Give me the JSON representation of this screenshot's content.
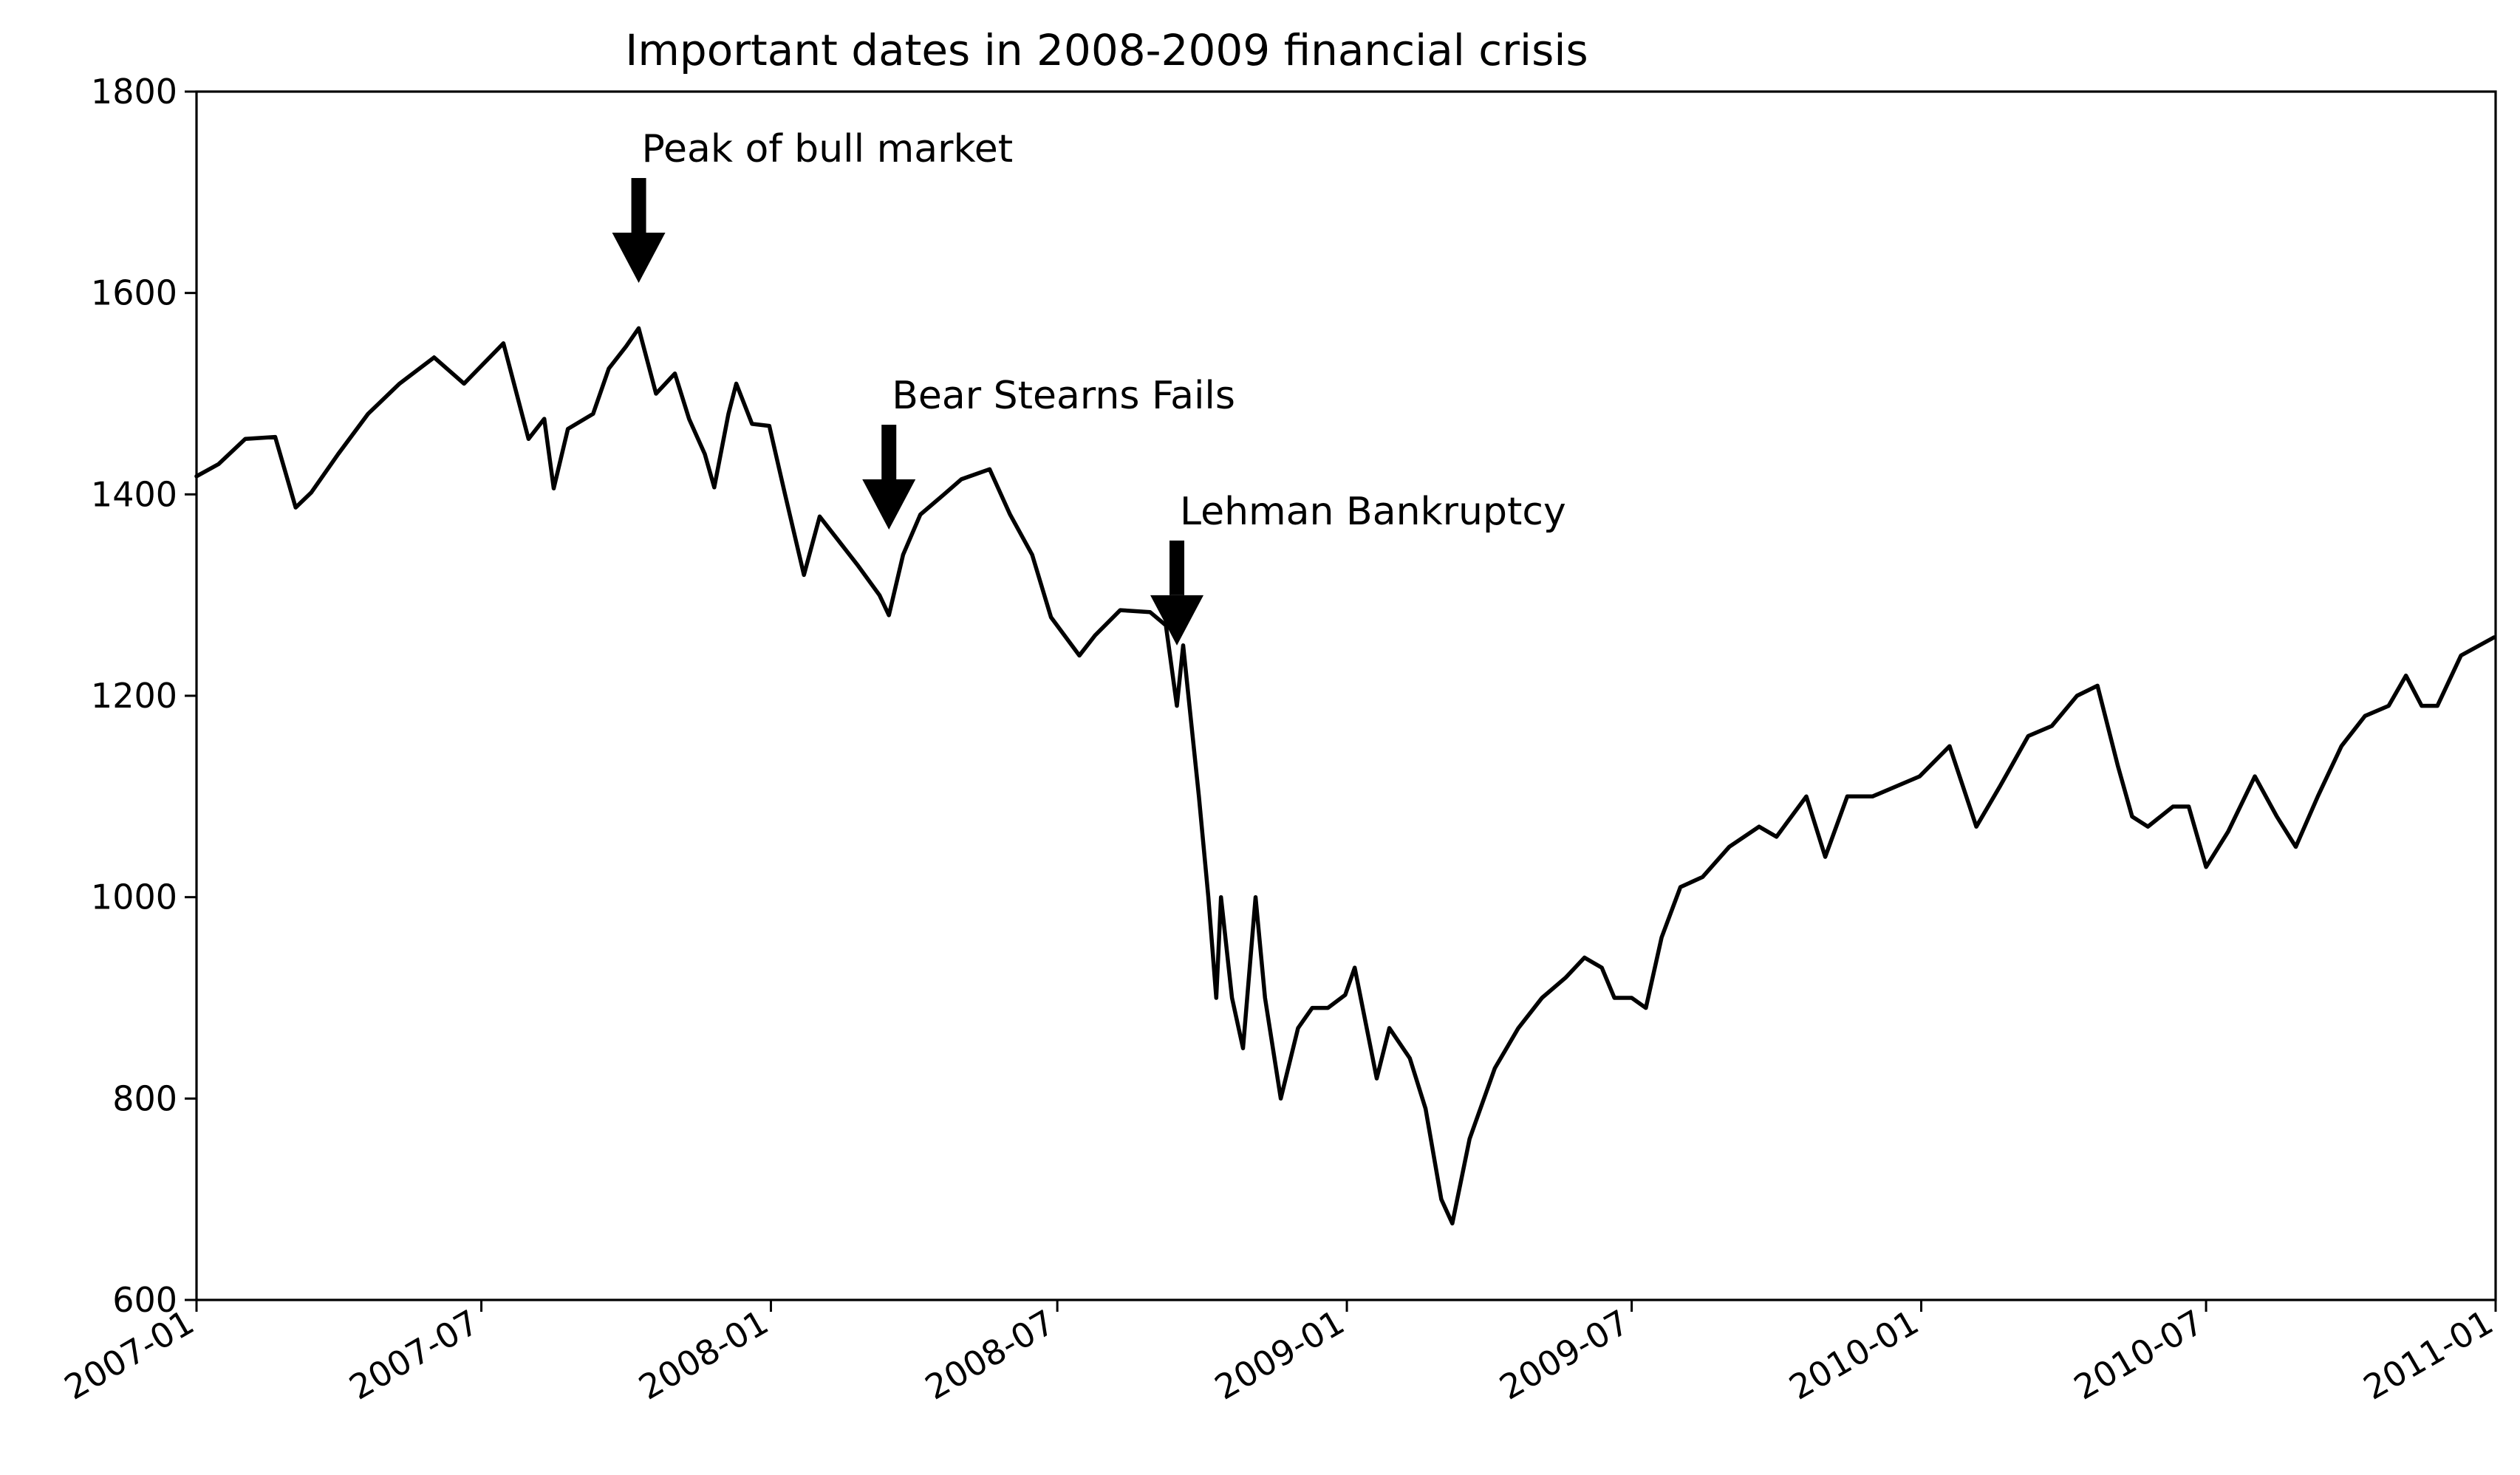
{
  "chart_data": {
    "type": "line",
    "title": "Important dates in 2008-2009 financial crisis",
    "xlabel": "",
    "ylabel": "",
    "xlim": [
      "2007-01",
      "2011-01"
    ],
    "ylim": [
      600,
      1800
    ],
    "grid": false,
    "y_ticks": [
      "600",
      "800",
      "1000",
      "1200",
      "1400",
      "1600",
      "1800"
    ],
    "x_ticks": [
      "2007-01",
      "2007-07",
      "2008-01",
      "2008-07",
      "2009-01",
      "2009-07",
      "2010-01",
      "2010-07",
      "2011-01"
    ],
    "line_color": "#000000",
    "series": [
      {
        "x": [
          "2007-01-01",
          "2007-01-15",
          "2007-02-01",
          "2007-02-20",
          "2007-03-05",
          "2007-03-15",
          "2007-04-01",
          "2007-04-20",
          "2007-05-10",
          "2007-06-01",
          "2007-06-20",
          "2007-07-15",
          "2007-07-31",
          "2007-08-10",
          "2007-08-16",
          "2007-08-25",
          "2007-09-10",
          "2007-09-20",
          "2007-10-01",
          "2007-10-09",
          "2007-10-20",
          "2007-11-01",
          "2007-11-10",
          "2007-11-20",
          "2007-11-26",
          "2007-12-05",
          "2007-12-10",
          "2007-12-20",
          "2007-12-31",
          "2008-01-10",
          "2008-01-22",
          "2008-02-01",
          "2008-02-15",
          "2008-02-25",
          "2008-03-10",
          "2008-03-16",
          "2008-03-25",
          "2008-04-05",
          "2008-04-20",
          "2008-05-01",
          "2008-05-19",
          "2008-06-01",
          "2008-06-15",
          "2008-06-27",
          "2008-07-15",
          "2008-07-25",
          "2008-08-10",
          "2008-08-29",
          "2008-09-08",
          "2008-09-15",
          "2008-09-19",
          "2008-09-29",
          "2008-10-05",
          "2008-10-10",
          "2008-10-13",
          "2008-10-20",
          "2008-10-27",
          "2008-11-04",
          "2008-11-10",
          "2008-11-20",
          "2008-12-01",
          "2008-12-10",
          "2008-12-20",
          "2008-12-31",
          "2009-01-06",
          "2009-01-20",
          "2009-01-28",
          "2009-02-10",
          "2009-02-20",
          "2009-03-02",
          "2009-03-09",
          "2009-03-20",
          "2009-04-05",
          "2009-04-20",
          "2009-05-05",
          "2009-05-20",
          "2009-06-01",
          "2009-06-12",
          "2009-06-20",
          "2009-07-01",
          "2009-07-10",
          "2009-07-20",
          "2009-08-01",
          "2009-08-15",
          "2009-09-01",
          "2009-09-20",
          "2009-10-01",
          "2009-10-20",
          "2009-11-01",
          "2009-11-15",
          "2009-12-01",
          "2009-12-31",
          "2010-01-19",
          "2010-02-05",
          "2010-02-20",
          "2010-03-10",
          "2010-03-25",
          "2010-04-10",
          "2010-04-23",
          "2010-05-06",
          "2010-05-15",
          "2010-05-25",
          "2010-06-10",
          "2010-06-20",
          "2010-07-01",
          "2010-07-15",
          "2010-08-01",
          "2010-08-15",
          "2010-08-27",
          "2010-09-10",
          "2010-09-25",
          "2010-10-10",
          "2010-10-25",
          "2010-11-05",
          "2010-11-15",
          "2010-11-25",
          "2010-12-10",
          "2010-12-31"
        ],
        "y": [
          1418,
          1430,
          1455,
          1457,
          1387,
          1402,
          1440,
          1480,
          1510,
          1536,
          1510,
          1550,
          1455,
          1475,
          1406,
          1465,
          1480,
          1525,
          1547,
          1565,
          1500,
          1520,
          1475,
          1440,
          1407,
          1480,
          1510,
          1470,
          1468,
          1400,
          1320,
          1378,
          1350,
          1330,
          1300,
          1280,
          1340,
          1380,
          1400,
          1415,
          1425,
          1380,
          1340,
          1278,
          1240,
          1260,
          1285,
          1283,
          1270,
          1190,
          1250,
          1100,
          1000,
          900,
          1000,
          900,
          850,
          1000,
          900,
          800,
          870,
          890,
          890,
          903,
          930,
          820,
          870,
          840,
          790,
          700,
          676,
          760,
          830,
          870,
          900,
          920,
          940,
          930,
          900,
          900,
          890,
          960,
          1010,
          1020,
          1050,
          1070,
          1060,
          1100,
          1040,
          1100,
          1100,
          1120,
          1150,
          1070,
          1110,
          1160,
          1170,
          1200,
          1210,
          1130,
          1080,
          1070,
          1090,
          1090,
          1030,
          1065,
          1120,
          1080,
          1050,
          1100,
          1150,
          1180,
          1190,
          1220,
          1190,
          1190,
          1240,
          1258
        ]
      }
    ],
    "annotations": [
      {
        "text": "Peak of bull market",
        "x": "2007-10-09",
        "y": 1610
      },
      {
        "text": "Bear Stearns Fails",
        "x": "2008-03-16",
        "y": 1365
      },
      {
        "text": "Lehman Bankruptcy",
        "x": "2008-09-15",
        "y": 1250
      }
    ]
  }
}
